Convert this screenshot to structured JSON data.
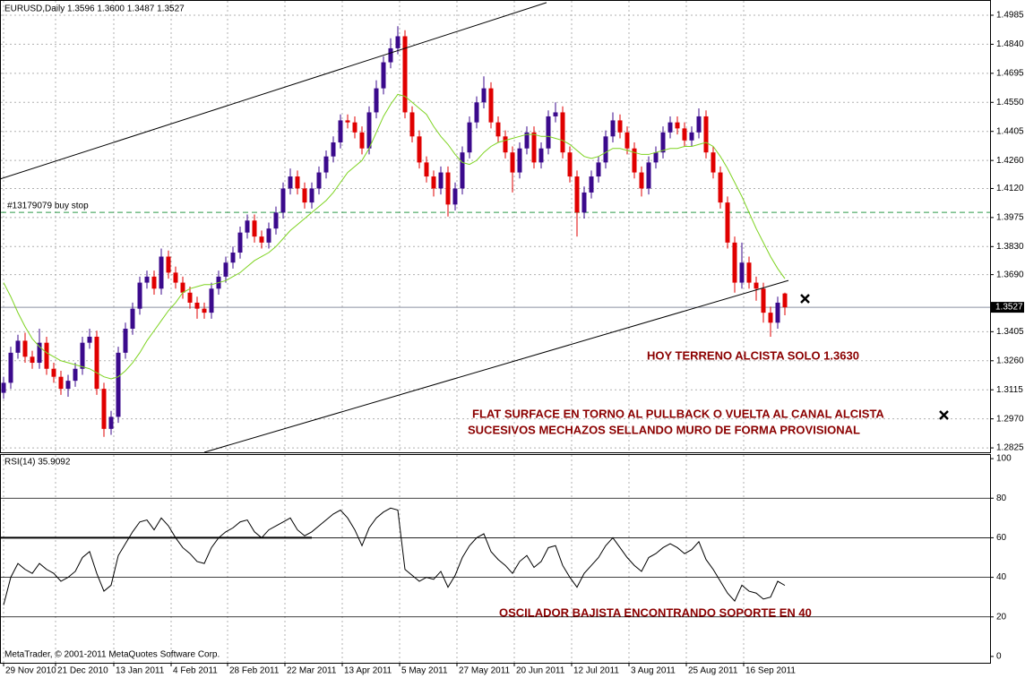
{
  "chart_data": [
    {
      "type": "candlestick",
      "title": "EURUSD,Daily  1.3596 1.3600 1.3487 1.3527",
      "up_color": "#3b0a8c",
      "down_color": "#e00000",
      "xlim": [
        -0.5,
        137.625
      ],
      "ylim": [
        1.2803,
        1.5061
      ],
      "yticks": [
        1.4985,
        {
          "value": 1.484,
          "label": "1.4840"
        },
        1.4695,
        {
          "value": 1.455,
          "label": "1.4550"
        },
        1.4405,
        {
          "value": 1.426,
          "label": "1.4260"
        },
        {
          "value": 1.412,
          "label": "1.4120"
        },
        1.3975,
        {
          "value": 1.383,
          "label": "1.3830"
        },
        {
          "value": 1.369,
          "label": "1.3690"
        },
        1.3405,
        {
          "value": 1.326,
          "label": "1.3260"
        },
        1.3115,
        {
          "value": 1.297,
          "label": "1.2970"
        },
        1.2825
      ],
      "grid": true,
      "ohlc": [
        [
          1.31,
          1.318,
          1.307,
          1.315
        ],
        [
          1.315,
          1.333,
          1.312,
          1.33
        ],
        [
          1.33,
          1.339,
          1.327,
          1.336
        ],
        [
          1.336,
          1.34,
          1.325,
          1.328
        ],
        [
          1.328,
          1.331,
          1.322,
          1.325
        ],
        [
          1.325,
          1.342,
          1.322,
          1.335
        ],
        [
          1.335,
          1.338,
          1.319,
          1.322
        ],
        [
          1.322,
          1.325,
          1.315,
          1.318
        ],
        [
          1.318,
          1.321,
          1.309,
          1.312
        ],
        [
          1.312,
          1.319,
          1.308,
          1.316
        ],
        [
          1.316,
          1.325,
          1.313,
          1.322
        ],
        [
          1.322,
          1.338,
          1.319,
          1.335
        ],
        [
          1.335,
          1.342,
          1.332,
          1.338
        ],
        [
          1.338,
          1.341,
          1.309,
          1.312
        ],
        [
          1.312,
          1.315,
          1.288,
          1.292
        ],
        [
          1.292,
          1.301,
          1.289,
          1.298
        ],
        [
          1.298,
          1.333,
          1.295,
          1.33
        ],
        [
          1.33,
          1.345,
          1.327,
          1.342
        ],
        [
          1.342,
          1.355,
          1.339,
          1.352
        ],
        [
          1.352,
          1.368,
          1.349,
          1.365
        ],
        [
          1.365,
          1.371,
          1.362,
          1.368
        ],
        [
          1.368,
          1.371,
          1.359,
          1.362
        ],
        [
          1.362,
          1.382,
          1.359,
          1.378
        ],
        [
          1.378,
          1.381,
          1.367,
          1.37
        ],
        [
          1.37,
          1.373,
          1.362,
          1.365
        ],
        [
          1.365,
          1.368,
          1.357,
          1.36
        ],
        [
          1.36,
          1.363,
          1.352,
          1.355
        ],
        [
          1.355,
          1.358,
          1.347,
          1.352
        ],
        [
          1.352,
          1.355,
          1.347,
          1.35
        ],
        [
          1.35,
          1.365,
          1.347,
          1.362
        ],
        [
          1.362,
          1.371,
          1.359,
          1.368
        ],
        [
          1.368,
          1.378,
          1.365,
          1.375
        ],
        [
          1.375,
          1.383,
          1.372,
          1.38
        ],
        [
          1.38,
          1.393,
          1.377,
          1.39
        ],
        [
          1.39,
          1.399,
          1.387,
          1.396
        ],
        [
          1.396,
          1.399,
          1.385,
          1.388
        ],
        [
          1.388,
          1.391,
          1.382,
          1.385
        ],
        [
          1.385,
          1.395,
          1.382,
          1.392
        ],
        [
          1.392,
          1.403,
          1.389,
          1.4
        ],
        [
          1.4,
          1.415,
          1.397,
          1.412
        ],
        [
          1.412,
          1.422,
          1.409,
          1.418
        ],
        [
          1.418,
          1.421,
          1.409,
          1.412
        ],
        [
          1.412,
          1.415,
          1.402,
          1.405
        ],
        [
          1.405,
          1.415,
          1.402,
          1.412
        ],
        [
          1.412,
          1.423,
          1.409,
          1.42
        ],
        [
          1.42,
          1.431,
          1.417,
          1.428
        ],
        [
          1.428,
          1.438,
          1.425,
          1.435
        ],
        [
          1.435,
          1.449,
          1.432,
          1.446
        ],
        [
          1.446,
          1.449,
          1.442,
          1.445
        ],
        [
          1.445,
          1.448,
          1.437,
          1.44
        ],
        [
          1.44,
          1.443,
          1.429,
          1.432
        ],
        [
          1.432,
          1.453,
          1.429,
          1.45
        ],
        [
          1.45,
          1.466,
          1.447,
          1.462
        ],
        [
          1.462,
          1.478,
          1.459,
          1.475
        ],
        [
          1.475,
          1.487,
          1.472,
          1.482
        ],
        [
          1.482,
          1.493,
          1.479,
          1.488
        ],
        [
          1.488,
          1.491,
          1.447,
          1.45
        ],
        [
          1.45,
          1.453,
          1.435,
          1.438
        ],
        [
          1.438,
          1.441,
          1.422,
          1.425
        ],
        [
          1.425,
          1.428,
          1.415,
          1.418
        ],
        [
          1.418,
          1.421,
          1.408,
          1.412
        ],
        [
          1.412,
          1.423,
          1.409,
          1.42
        ],
        [
          1.42,
          1.423,
          1.398,
          1.404
        ],
        [
          1.404,
          1.415,
          1.401,
          1.412
        ],
        [
          1.412,
          1.433,
          1.409,
          1.43
        ],
        [
          1.43,
          1.448,
          1.427,
          1.445
        ],
        [
          1.445,
          1.458,
          1.442,
          1.455
        ],
        [
          1.455,
          1.468,
          1.452,
          1.462
        ],
        [
          1.462,
          1.465,
          1.442,
          1.445
        ],
        [
          1.445,
          1.448,
          1.435,
          1.438
        ],
        [
          1.438,
          1.441,
          1.427,
          1.43
        ],
        [
          1.43,
          1.433,
          1.41,
          1.42
        ],
        [
          1.42,
          1.435,
          1.417,
          1.432
        ],
        [
          1.432,
          1.443,
          1.429,
          1.44
        ],
        [
          1.44,
          1.443,
          1.422,
          1.425
        ],
        [
          1.425,
          1.435,
          1.422,
          1.432
        ],
        [
          1.432,
          1.451,
          1.429,
          1.448
        ],
        [
          1.448,
          1.455,
          1.445,
          1.45
        ],
        [
          1.45,
          1.453,
          1.427,
          1.43
        ],
        [
          1.43,
          1.433,
          1.415,
          1.418
        ],
        [
          1.418,
          1.421,
          1.388,
          1.4
        ],
        [
          1.4,
          1.413,
          1.397,
          1.41
        ],
        [
          1.41,
          1.421,
          1.407,
          1.418
        ],
        [
          1.418,
          1.428,
          1.415,
          1.425
        ],
        [
          1.425,
          1.441,
          1.422,
          1.438
        ],
        [
          1.438,
          1.45,
          1.435,
          1.446
        ],
        [
          1.446,
          1.449,
          1.437,
          1.44
        ],
        [
          1.44,
          1.443,
          1.429,
          1.432
        ],
        [
          1.432,
          1.435,
          1.417,
          1.42
        ],
        [
          1.42,
          1.423,
          1.408,
          1.412
        ],
        [
          1.412,
          1.428,
          1.409,
          1.425
        ],
        [
          1.425,
          1.433,
          1.422,
          1.43
        ],
        [
          1.43,
          1.443,
          1.427,
          1.44
        ],
        [
          1.44,
          1.448,
          1.437,
          1.445
        ],
        [
          1.445,
          1.448,
          1.439,
          1.442
        ],
        [
          1.442,
          1.445,
          1.433,
          1.436
        ],
        [
          1.436,
          1.443,
          1.433,
          1.44
        ],
        [
          1.44,
          1.452,
          1.437,
          1.448
        ],
        [
          1.448,
          1.451,
          1.427,
          1.43
        ],
        [
          1.43,
          1.433,
          1.417,
          1.42
        ],
        [
          1.42,
          1.423,
          1.402,
          1.405
        ],
        [
          1.405,
          1.408,
          1.382,
          1.385
        ],
        [
          1.385,
          1.388,
          1.36,
          1.365
        ],
        [
          1.365,
          1.385,
          1.362,
          1.375
        ],
        [
          1.375,
          1.378,
          1.362,
          1.365
        ],
        [
          1.365,
          1.368,
          1.356,
          1.362
        ],
        [
          1.362,
          1.365,
          1.345,
          1.35
        ],
        [
          1.35,
          1.353,
          1.338,
          1.345
        ],
        [
          1.345,
          1.358,
          1.342,
          1.355
        ],
        [
          1.3596,
          1.36,
          1.3487,
          1.3527
        ]
      ],
      "ma": {
        "color": "#7ed321",
        "values": [
          1.365,
          1.358,
          1.35,
          1.343,
          1.337,
          1.333,
          1.33,
          1.328,
          1.326,
          1.325,
          1.324,
          1.323,
          1.322,
          1.32,
          1.318,
          1.317,
          1.318,
          1.321,
          1.325,
          1.33,
          1.336,
          1.341,
          1.346,
          1.351,
          1.355,
          1.36,
          1.362,
          1.363,
          1.364,
          1.364,
          1.365,
          1.366,
          1.368,
          1.37,
          1.373,
          1.376,
          1.378,
          1.38,
          1.383,
          1.387,
          1.391,
          1.394,
          1.397,
          1.4,
          1.403,
          1.406,
          1.41,
          1.415,
          1.42,
          1.423,
          1.426,
          1.432,
          1.44,
          1.448,
          1.454,
          1.459,
          1.458,
          1.455,
          1.452,
          1.449,
          1.443,
          1.438,
          1.434,
          1.429,
          1.425,
          1.424,
          1.426,
          1.43,
          1.433,
          1.435,
          1.436,
          1.437,
          1.438,
          1.439,
          1.439,
          1.438,
          1.438,
          1.437,
          1.436,
          1.434,
          1.431,
          1.428,
          1.427,
          1.428,
          1.43,
          1.432,
          1.432,
          1.431,
          1.43,
          1.429,
          1.429,
          1.43,
          1.431,
          1.432,
          1.432,
          1.433,
          1.433,
          1.434,
          1.435,
          1.433,
          1.428,
          1.422,
          1.415,
          1.408,
          1.4,
          1.392,
          1.385,
          1.378,
          1.372,
          1.367
        ]
      },
      "trendlines": [
        {
          "x": [
            -0.5,
            75.75
          ],
          "y": [
            1.4167,
            1.5048
          ]
        },
        {
          "x": [
            28,
            109.5
          ],
          "y": [
            1.2803,
            1.3661
          ]
        }
      ],
      "order_line": {
        "label": "#13179079 buy stop",
        "value": 1.4001,
        "color": "#2e9b4a"
      },
      "current_price": 1.3527,
      "annotations": [
        "HOY TERRENO ALCISTA SOLO 1.3630",
        "FLAT SURFACE EN TORNO AL PULLBACK O VUELTA AL CANAL ALCISTA",
        "SUCESIVOS MECHAZOS SELLANDO MURO DE FORMA PROVISIONAL"
      ]
    },
    {
      "type": "line",
      "title": "RSI(14) 35.9092",
      "color": "#000000",
      "xlim": [
        -0.5,
        137.625
      ],
      "ylim": [
        -3.2,
        102.3
      ],
      "yticks": [
        100,
        80,
        60,
        40,
        20,
        0
      ],
      "levels": [
        80,
        60,
        40,
        20
      ],
      "xticks": [
        {
          "value": 0,
          "label": "29 Nov 2010"
        },
        {
          "value": 7.25,
          "label": "21 Dec 2010"
        },
        {
          "value": 15.375,
          "label": "13 Jan 2011"
        },
        {
          "value": 23.375,
          "label": "4 Feb 2011"
        },
        {
          "value": 31.25,
          "label": "28 Feb 2011"
        },
        {
          "value": 39.25,
          "label": "22 Mar 2011"
        },
        {
          "value": 47.25,
          "label": "13 Apr 2011"
        },
        {
          "value": 55.25,
          "label": "5 May 2011"
        },
        {
          "value": 63.25,
          "label": "27 May 2011"
        },
        {
          "value": 71.25,
          "label": "20 Jun 2011"
        },
        {
          "value": 79.25,
          "label": "12 Jul 2011"
        },
        {
          "value": 87.25,
          "label": "3 Aug 2011"
        },
        {
          "value": 95.25,
          "label": "25 Aug 2011"
        },
        {
          "value": 103.25,
          "label": "16 Sep 2011"
        }
      ],
      "values": [
        26,
        40,
        47,
        44,
        42,
        47,
        44,
        42,
        38,
        40,
        43,
        50,
        53,
        42,
        33,
        36,
        51,
        57,
        63,
        68,
        69,
        64,
        70,
        66,
        60,
        55,
        52,
        48,
        47,
        55,
        60,
        63,
        65,
        68,
        69,
        63,
        60,
        64,
        66,
        68,
        70,
        64,
        61,
        63,
        66,
        69,
        72,
        74,
        70,
        64,
        56,
        65,
        70,
        73,
        75,
        74,
        44,
        41,
        38,
        40,
        39,
        43,
        35,
        41,
        50,
        56,
        60,
        62,
        53,
        49,
        46,
        42,
        48,
        51,
        45,
        48,
        55,
        56,
        46,
        40,
        35,
        42,
        46,
        50,
        56,
        60,
        55,
        50,
        46,
        43,
        50,
        52,
        55,
        57,
        55,
        52,
        54,
        58,
        49,
        44,
        38,
        32,
        28,
        36,
        33,
        32,
        29,
        30,
        38,
        35.9092
      ],
      "trendlines": [
        {
          "x": [
            -0.5,
            43
          ],
          "y": [
            60,
            60
          ]
        }
      ],
      "annotation": "OSCILADOR BAJISTA ENCONTRANDO SOPORTE EN 40",
      "footer": "MetaTrader, © 2001-2011 MetaQuotes Software Corp."
    }
  ]
}
